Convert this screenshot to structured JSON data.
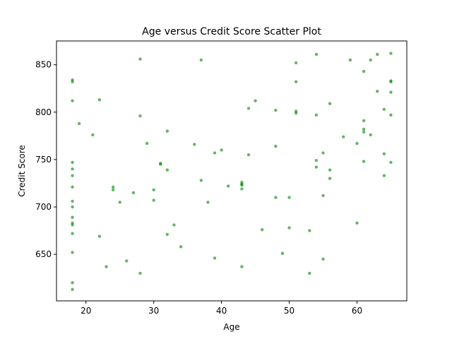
{
  "chart_data": {
    "type": "scatter",
    "title": "Age versus Credit Score Scatter Plot",
    "xlabel": "Age",
    "ylabel": "Credit Score",
    "xlim": [
      15.65,
      67.35
    ],
    "ylim": [
      600.9,
      875.1
    ],
    "xticks": [
      20,
      30,
      40,
      50,
      60
    ],
    "yticks": [
      650,
      700,
      750,
      800,
      850
    ],
    "grid": false,
    "color": "#008000",
    "points": [
      {
        "x": 18,
        "y": 834
      },
      {
        "x": 18,
        "y": 832
      },
      {
        "x": 18,
        "y": 812
      },
      {
        "x": 18,
        "y": 747
      },
      {
        "x": 18,
        "y": 740
      },
      {
        "x": 18,
        "y": 733
      },
      {
        "x": 18,
        "y": 721
      },
      {
        "x": 18,
        "y": 706
      },
      {
        "x": 18,
        "y": 700
      },
      {
        "x": 18,
        "y": 689
      },
      {
        "x": 18,
        "y": 683
      },
      {
        "x": 18,
        "y": 681
      },
      {
        "x": 18,
        "y": 672
      },
      {
        "x": 18,
        "y": 652
      },
      {
        "x": 18,
        "y": 620
      },
      {
        "x": 18,
        "y": 613
      },
      {
        "x": 19,
        "y": 788
      },
      {
        "x": 21,
        "y": 776
      },
      {
        "x": 22,
        "y": 813
      },
      {
        "x": 22,
        "y": 669
      },
      {
        "x": 23,
        "y": 637
      },
      {
        "x": 24,
        "y": 721
      },
      {
        "x": 24,
        "y": 718
      },
      {
        "x": 25,
        "y": 705
      },
      {
        "x": 26,
        "y": 643
      },
      {
        "x": 27,
        "y": 715
      },
      {
        "x": 28,
        "y": 856
      },
      {
        "x": 28,
        "y": 796
      },
      {
        "x": 28,
        "y": 630
      },
      {
        "x": 29,
        "y": 767
      },
      {
        "x": 30,
        "y": 718
      },
      {
        "x": 30,
        "y": 707
      },
      {
        "x": 31,
        "y": 746
      },
      {
        "x": 31,
        "y": 745
      },
      {
        "x": 32,
        "y": 780
      },
      {
        "x": 32,
        "y": 739
      },
      {
        "x": 32,
        "y": 671
      },
      {
        "x": 33,
        "y": 681
      },
      {
        "x": 34,
        "y": 658
      },
      {
        "x": 36,
        "y": 766
      },
      {
        "x": 37,
        "y": 855
      },
      {
        "x": 37,
        "y": 728
      },
      {
        "x": 38,
        "y": 705
      },
      {
        "x": 39,
        "y": 757
      },
      {
        "x": 39,
        "y": 646
      },
      {
        "x": 40,
        "y": 760
      },
      {
        "x": 41,
        "y": 722
      },
      {
        "x": 43,
        "y": 726
      },
      {
        "x": 43,
        "y": 724
      },
      {
        "x": 43,
        "y": 723
      },
      {
        "x": 43,
        "y": 719
      },
      {
        "x": 43,
        "y": 637
      },
      {
        "x": 44,
        "y": 804
      },
      {
        "x": 44,
        "y": 755
      },
      {
        "x": 45,
        "y": 812
      },
      {
        "x": 46,
        "y": 676
      },
      {
        "x": 48,
        "y": 802
      },
      {
        "x": 48,
        "y": 764
      },
      {
        "x": 48,
        "y": 710
      },
      {
        "x": 49,
        "y": 651
      },
      {
        "x": 50,
        "y": 710
      },
      {
        "x": 50,
        "y": 678
      },
      {
        "x": 51,
        "y": 852
      },
      {
        "x": 51,
        "y": 832
      },
      {
        "x": 51,
        "y": 801
      },
      {
        "x": 51,
        "y": 799
      },
      {
        "x": 53,
        "y": 675
      },
      {
        "x": 53,
        "y": 630
      },
      {
        "x": 54,
        "y": 861
      },
      {
        "x": 54,
        "y": 797
      },
      {
        "x": 54,
        "y": 749
      },
      {
        "x": 54,
        "y": 742
      },
      {
        "x": 55,
        "y": 757
      },
      {
        "x": 55,
        "y": 712
      },
      {
        "x": 55,
        "y": 645
      },
      {
        "x": 56,
        "y": 809
      },
      {
        "x": 56,
        "y": 739
      },
      {
        "x": 56,
        "y": 730
      },
      {
        "x": 58,
        "y": 774
      },
      {
        "x": 59,
        "y": 855
      },
      {
        "x": 60,
        "y": 767
      },
      {
        "x": 60,
        "y": 683
      },
      {
        "x": 61,
        "y": 843
      },
      {
        "x": 61,
        "y": 791
      },
      {
        "x": 61,
        "y": 782
      },
      {
        "x": 61,
        "y": 779
      },
      {
        "x": 61,
        "y": 748
      },
      {
        "x": 62,
        "y": 855
      },
      {
        "x": 62,
        "y": 776
      },
      {
        "x": 63,
        "y": 861
      },
      {
        "x": 63,
        "y": 822
      },
      {
        "x": 64,
        "y": 803
      },
      {
        "x": 64,
        "y": 756
      },
      {
        "x": 64,
        "y": 733
      },
      {
        "x": 65,
        "y": 862
      },
      {
        "x": 65,
        "y": 833
      },
      {
        "x": 65,
        "y": 832
      },
      {
        "x": 65,
        "y": 821
      },
      {
        "x": 65,
        "y": 797
      },
      {
        "x": 65,
        "y": 747
      }
    ]
  }
}
